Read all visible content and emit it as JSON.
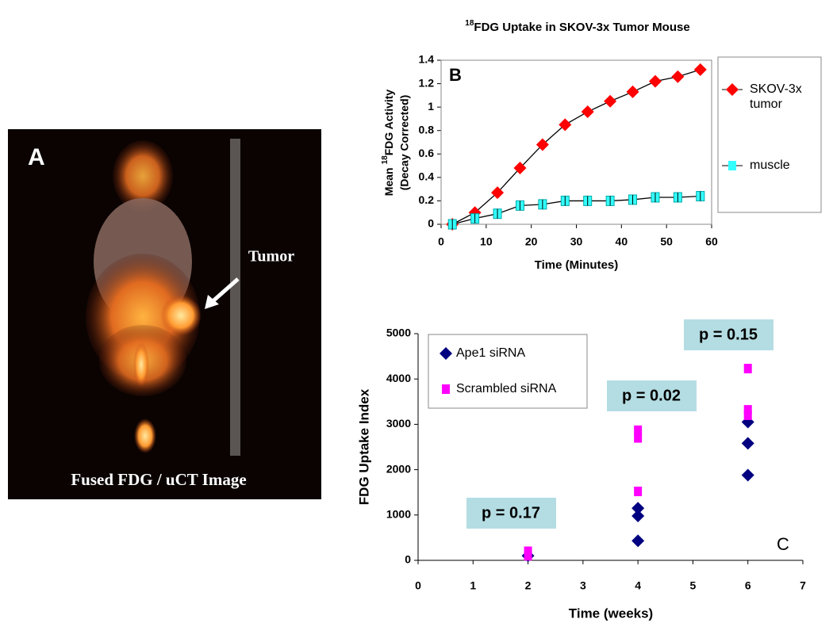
{
  "panel_a": {
    "label": "A",
    "tumor_label": "Tumor",
    "caption": "Fused FDG / uCT Image"
  },
  "chart_data": [
    {
      "type": "line",
      "panel_label": "B",
      "title_superscript": "18",
      "title": "FDG Uptake in SKOV-3x Tumor Mouse",
      "ylabel_prefix": "Mean",
      "ylabel_superscript": "18",
      "ylabel": "FDG Activity",
      "ylabel_line2": "(Decay Corrected)",
      "xlabel": "Time (Minutes)",
      "x": [
        2.5,
        7.5,
        12.5,
        17.5,
        22.5,
        27.5,
        32.5,
        37.5,
        42.5,
        47.5,
        52.5,
        57.5
      ],
      "series": [
        {
          "name": "SKOV-3x tumor",
          "color": "#ff0000",
          "marker": "diamond",
          "values": [
            0,
            0.1,
            0.27,
            0.48,
            0.68,
            0.85,
            0.96,
            1.05,
            1.13,
            1.22,
            1.26,
            1.32
          ]
        },
        {
          "name": "muscle",
          "color": "#33ffff",
          "marker": "square",
          "values": [
            0,
            0.05,
            0.09,
            0.16,
            0.17,
            0.2,
            0.2,
            0.2,
            0.21,
            0.23,
            0.23,
            0.24
          ]
        }
      ],
      "line_color": "#000000",
      "xlim": [
        0,
        60
      ],
      "xticks": [
        0,
        10,
        20,
        30,
        40,
        50,
        60
      ],
      "ylim": [
        0,
        1.4
      ],
      "yticks": [
        0,
        0.2,
        0.4,
        0.6,
        0.8,
        1,
        1.2,
        1.4
      ],
      "legend": "right"
    },
    {
      "type": "scatter",
      "panel_label": "C",
      "xlabel": "Time (weeks)",
      "ylabel": "FDG Uptake Index",
      "series": [
        {
          "name": "Ape1 siRNA",
          "color": "#000080",
          "marker": "diamond",
          "x": [
            2,
            4,
            4,
            4,
            6,
            6,
            6
          ],
          "values": [
            100,
            430,
            980,
            1150,
            1880,
            2580,
            3050
          ]
        },
        {
          "name": "Scrambled siRNA",
          "color": "#ff00ff",
          "marker": "square",
          "x": [
            2,
            2,
            4,
            4,
            4,
            6,
            6,
            6
          ],
          "values": [
            100,
            200,
            1520,
            2700,
            2870,
            3200,
            3320,
            4230
          ]
        }
      ],
      "annotations": [
        "p = 0.17",
        "p = 0.02",
        "p = 0.15"
      ],
      "annotation_color": "#b4dde3",
      "xlim": [
        0,
        7
      ],
      "xticks": [
        0,
        1,
        2,
        3,
        4,
        5,
        6,
        7
      ],
      "ylim": [
        0,
        5000
      ],
      "yticks": [
        0,
        1000,
        2000,
        3000,
        4000,
        5000
      ],
      "legend": "upper left"
    }
  ]
}
